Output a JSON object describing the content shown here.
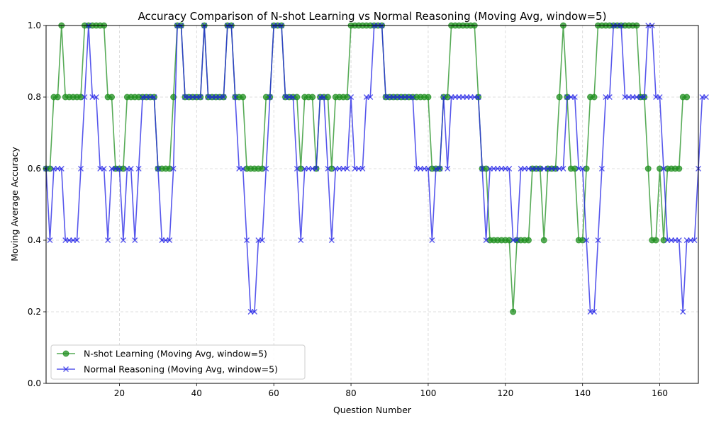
{
  "chart_data": {
    "type": "line",
    "title": "Accuracy Comparison of N-shot Learning vs Normal Reasoning (Moving Avg, window=5)",
    "xlabel": "Question Number",
    "ylabel": "Moving Average Accuracy",
    "xlim": [
      1,
      170
    ],
    "ylim": [
      0,
      1
    ],
    "xticks": [
      20,
      40,
      60,
      80,
      100,
      120,
      140,
      160
    ],
    "yticks": [
      0.0,
      0.2,
      0.4,
      0.6,
      0.8,
      1.0
    ],
    "ytick_labels": [
      "0.0",
      "0.2",
      "0.4",
      "0.6",
      "0.8",
      "1.0"
    ],
    "grid": true,
    "legend_position": "lower-left",
    "x_start": 1,
    "series": [
      {
        "name": "N-shot Learning (Moving Avg, window=5)",
        "color": "#1f8f1f",
        "marker": "circle",
        "values": [
          0.6,
          0.6,
          0.8,
          0.8,
          1.0,
          0.8,
          0.8,
          0.8,
          0.8,
          0.8,
          1.0,
          1.0,
          1.0,
          1.0,
          1.0,
          1.0,
          0.8,
          0.8,
          0.6,
          0.6,
          0.6,
          0.8,
          0.8,
          0.8,
          0.8,
          0.8,
          0.8,
          0.8,
          0.8,
          0.6,
          0.6,
          0.6,
          0.6,
          0.8,
          1.0,
          1.0,
          0.8,
          0.8,
          0.8,
          0.8,
          0.8,
          1.0,
          0.8,
          0.8,
          0.8,
          0.8,
          0.8,
          1.0,
          1.0,
          0.8,
          0.8,
          0.8,
          0.6,
          0.6,
          0.6,
          0.6,
          0.6,
          0.8,
          0.8,
          1.0,
          1.0,
          1.0,
          0.8,
          0.8,
          0.8,
          0.8,
          0.6,
          0.8,
          0.8,
          0.8,
          0.6,
          0.8,
          0.8,
          0.8,
          0.6,
          0.8,
          0.8,
          0.8,
          0.8,
          1.0,
          1.0,
          1.0,
          1.0,
          1.0,
          1.0,
          1.0,
          1.0,
          1.0,
          0.8,
          0.8,
          0.8,
          0.8,
          0.8,
          0.8,
          0.8,
          0.8,
          0.8,
          0.8,
          0.8,
          0.8,
          0.6,
          0.6,
          0.6,
          0.8,
          0.8,
          1.0,
          1.0,
          1.0,
          1.0,
          1.0,
          1.0,
          1.0,
          0.8,
          0.6,
          0.6,
          0.4,
          0.4,
          0.4,
          0.4,
          0.4,
          0.4,
          0.2,
          0.4,
          0.4,
          0.4,
          0.4,
          0.6,
          0.6,
          0.6,
          0.4,
          0.6,
          0.6,
          0.6,
          0.8,
          1.0,
          0.8,
          0.6,
          0.6,
          0.4,
          0.4,
          0.6,
          0.8,
          0.8,
          1.0,
          1.0,
          1.0,
          1.0,
          1.0,
          1.0,
          1.0,
          1.0,
          1.0,
          1.0,
          1.0,
          0.8,
          0.8,
          0.6,
          0.4,
          0.4,
          0.6,
          0.4,
          0.6,
          0.6,
          0.6,
          0.6,
          0.8,
          0.8
        ]
      },
      {
        "name": "Normal Reasoning (Moving Avg, window=5)",
        "color": "#1f1fe6",
        "marker": "x",
        "values": [
          0.6,
          0.4,
          0.6,
          0.6,
          0.6,
          0.4,
          0.4,
          0.4,
          0.4,
          0.6,
          0.8,
          1.0,
          0.8,
          0.8,
          0.6,
          0.6,
          0.4,
          0.6,
          0.6,
          0.6,
          0.4,
          0.6,
          0.6,
          0.4,
          0.6,
          0.8,
          0.8,
          0.8,
          0.8,
          0.6,
          0.4,
          0.4,
          0.4,
          0.6,
          1.0,
          1.0,
          0.8,
          0.8,
          0.8,
          0.8,
          0.8,
          1.0,
          0.8,
          0.8,
          0.8,
          0.8,
          0.8,
          1.0,
          1.0,
          0.8,
          0.6,
          0.6,
          0.4,
          0.2,
          0.2,
          0.4,
          0.4,
          0.6,
          0.8,
          1.0,
          1.0,
          1.0,
          0.8,
          0.8,
          0.8,
          0.6,
          0.4,
          0.6,
          0.6,
          0.6,
          0.6,
          0.8,
          0.8,
          0.6,
          0.4,
          0.6,
          0.6,
          0.6,
          0.6,
          0.8,
          0.6,
          0.6,
          0.6,
          0.8,
          0.8,
          1.0,
          1.0,
          1.0,
          0.8,
          0.8,
          0.8,
          0.8,
          0.8,
          0.8,
          0.8,
          0.8,
          0.6,
          0.6,
          0.6,
          0.6,
          0.4,
          0.6,
          0.6,
          0.8,
          0.6,
          0.8,
          0.8,
          0.8,
          0.8,
          0.8,
          0.8,
          0.8,
          0.8,
          0.6,
          0.4,
          0.6,
          0.6,
          0.6,
          0.6,
          0.6,
          0.6,
          0.4,
          0.4,
          0.6,
          0.6,
          0.6,
          0.6,
          0.6,
          0.6,
          0.6,
          0.6,
          0.6,
          0.6,
          0.6,
          0.6,
          0.8,
          0.8,
          0.8,
          0.6,
          0.6,
          0.4,
          0.2,
          0.2,
          0.4,
          0.6,
          0.8,
          0.8,
          1.0,
          1.0,
          1.0,
          0.8,
          0.8,
          0.8,
          0.8,
          0.8,
          0.8,
          1.0,
          1.0,
          0.8,
          0.8,
          0.6,
          0.4,
          0.4,
          0.4,
          0.4,
          0.2,
          0.4,
          0.4,
          0.4,
          0.6,
          0.8,
          0.8
        ]
      }
    ]
  }
}
